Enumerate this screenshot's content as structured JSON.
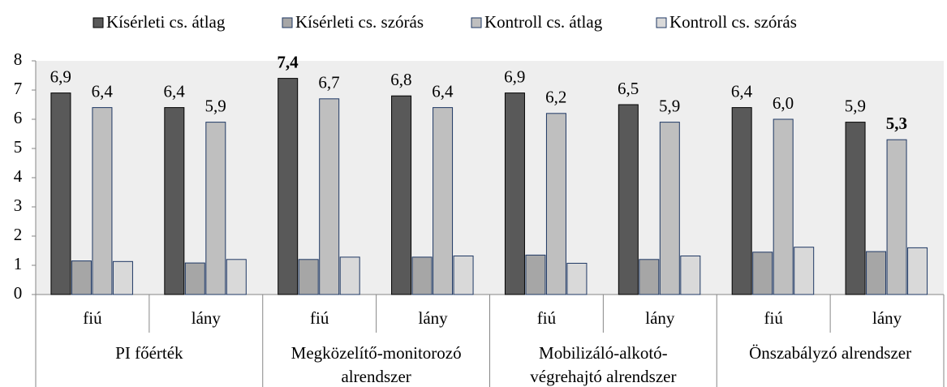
{
  "chart_data": {
    "type": "bar",
    "categories": [
      "fiú",
      "lány",
      "fiú",
      "lány",
      "fiú",
      "lány",
      "fiú",
      "lány"
    ],
    "groups": [
      [
        "PI főérték"
      ],
      [
        "Megközelítő-monitorozó",
        "alrendszer"
      ],
      [
        "Mobilizáló-alkotó-",
        "végrehajtó alrendszer"
      ],
      [
        "Önszabályzó alrendszer"
      ]
    ],
    "series": [
      {
        "name": "Kísérleti cs. átlag",
        "color": "#595959",
        "border": "#000000",
        "values": [
          6.9,
          6.4,
          7.4,
          6.8,
          6.9,
          6.5,
          6.4,
          5.9
        ],
        "value_labels": [
          "6,9",
          "6,4",
          "7,4",
          "6,8",
          "6,9",
          "6,5",
          "6,4",
          "5,9"
        ],
        "label_bold": [
          false,
          false,
          true,
          false,
          false,
          false,
          false,
          false
        ]
      },
      {
        "name": "Kísérleti cs. szórás",
        "color": "#a6a6a6",
        "border": "#1f3864",
        "values": [
          1.15,
          1.08,
          1.2,
          1.28,
          1.35,
          1.2,
          1.45,
          1.47
        ]
      },
      {
        "name": "Kontroll cs. átlag",
        "color": "#bfbfbf",
        "border": "#1f3864",
        "values": [
          6.4,
          5.9,
          6.7,
          6.4,
          6.2,
          5.9,
          6.0,
          5.3
        ],
        "value_labels": [
          "6,4",
          "5,9",
          "6,7",
          "6,4",
          "6,2",
          "5,9",
          "6,0",
          "5,3"
        ],
        "label_bold": [
          false,
          false,
          false,
          false,
          false,
          false,
          false,
          true
        ]
      },
      {
        "name": "Kontroll cs. szórás",
        "color": "#d9d9d9",
        "border": "#1f3864",
        "values": [
          1.13,
          1.2,
          1.28,
          1.32,
          1.07,
          1.32,
          1.62,
          1.6
        ]
      }
    ],
    "ylim": [
      0,
      8
    ],
    "yticks": [
      0,
      1,
      2,
      3,
      4,
      5,
      6,
      7,
      8
    ],
    "legend": "top",
    "plot_background": "#eeeeee"
  }
}
